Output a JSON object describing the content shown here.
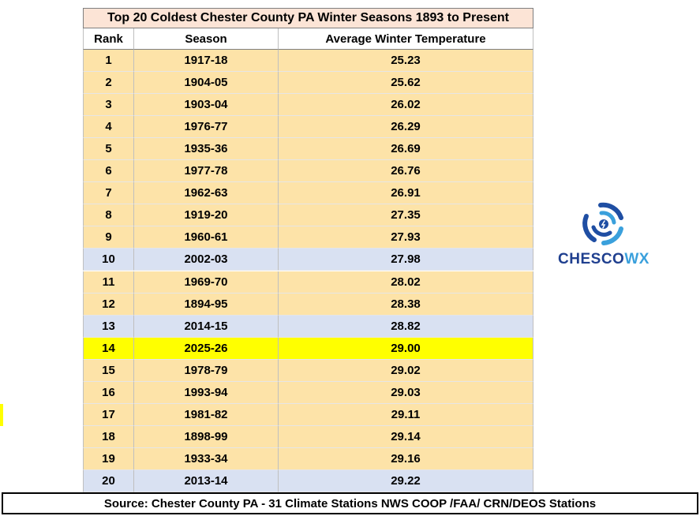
{
  "table": {
    "title": "Top 20 Coldest Chester County PA Winter Seasons 1893 to Present",
    "columns": [
      "Rank",
      "Season",
      "Average Winter Temperature"
    ],
    "rows": [
      [
        "1",
        "1917-18",
        "25.23"
      ],
      [
        "2",
        "1904-05",
        "25.62"
      ],
      [
        "3",
        "1903-04",
        "26.02"
      ],
      [
        "4",
        "1976-77",
        "26.29"
      ],
      [
        "5",
        "1935-36",
        "26.69"
      ],
      [
        "6",
        "1977-78",
        "26.76"
      ],
      [
        "7",
        "1962-63",
        "26.91"
      ],
      [
        "8",
        "1919-20",
        "27.35"
      ],
      [
        "9",
        "1960-61",
        "27.93"
      ],
      [
        "10",
        "2002-03",
        "27.98"
      ],
      [
        "11",
        "1969-70",
        "28.02"
      ],
      [
        "12",
        "1894-95",
        "28.38"
      ],
      [
        "13",
        "2014-15",
        "28.82"
      ],
      [
        "14",
        "2025-26",
        "29.00"
      ],
      [
        "15",
        "1978-79",
        "29.02"
      ],
      [
        "16",
        "1993-94",
        "29.03"
      ],
      [
        "17",
        "1981-82",
        "29.11"
      ],
      [
        "18",
        "1898-99",
        "29.14"
      ],
      [
        "19",
        "1933-34",
        "29.16"
      ],
      [
        "20",
        "2013-14",
        "29.22"
      ]
    ],
    "row_fills": [
      "#fde3a8",
      "#fde3a8",
      "#fde3a8",
      "#fde3a8",
      "#fde3a8",
      "#fde3a8",
      "#fde3a8",
      "#fde3a8",
      "#fde3a8",
      "#d9e1f2",
      "#fde3a8",
      "#fde3a8",
      "#d9e1f2",
      "#ffff00",
      "#fde3a8",
      "#fde3a8",
      "#fde3a8",
      "#fde3a8",
      "#fde3a8",
      "#d9e1f2"
    ]
  },
  "source": "Source: Chester County PA - 31 Climate Stations NWS COOP /FAA/ CRN/DEOS Stations",
  "logo": {
    "text_parts": [
      "CHESCO",
      "WX"
    ]
  }
}
